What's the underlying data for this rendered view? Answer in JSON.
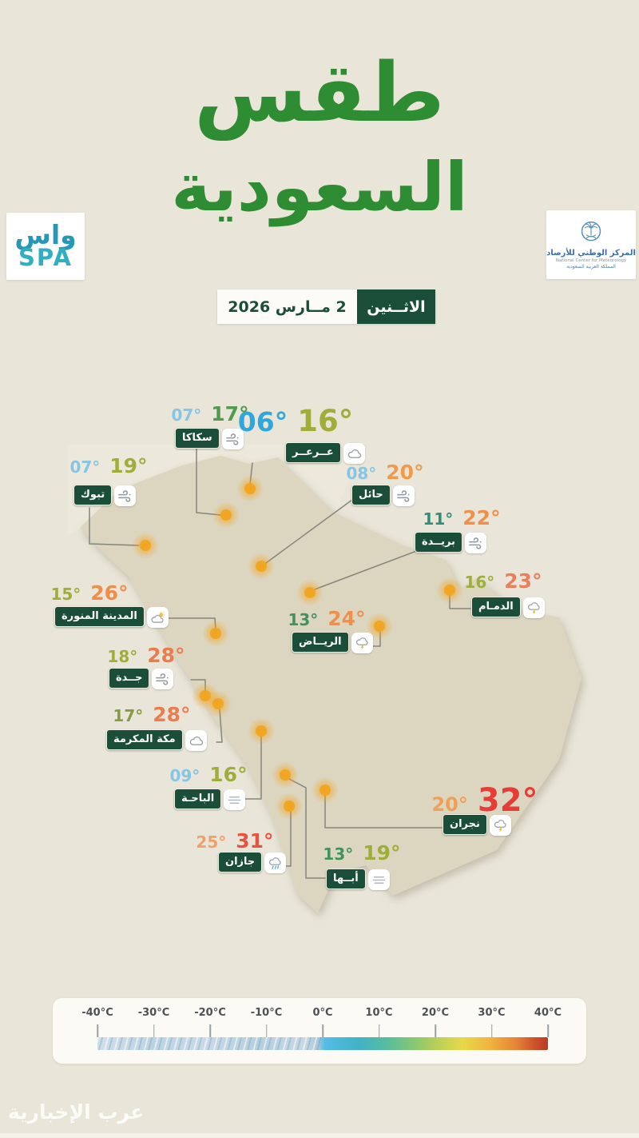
{
  "title": {
    "line1": "طقس",
    "line2": "السعودية"
  },
  "header": {
    "spa_logo": {
      "row1": "واس",
      "row2": "SPA"
    },
    "ncm_logo": {
      "name_ar": "المركز الوطني للأرصاد",
      "name_en": "National Center for Meteorology",
      "country_ar": "المملكة العربية السعودية"
    }
  },
  "date_bar": {
    "day": "الاثــنين",
    "date": "2 مــارس 2026"
  },
  "cities": [
    {
      "id": "arar",
      "name": "عــرعــر",
      "low": "06°",
      "high": "16°",
      "icon": "cloud",
      "low_color": "#2fa7dd",
      "high_color": "#9fae39"
    },
    {
      "id": "sakaka",
      "name": "سكاكا",
      "low": "07°",
      "high": "17°",
      "icon": "wind",
      "low_color": "#85c5e6",
      "high_color": "#4f9c51"
    },
    {
      "id": "tabuk",
      "name": "تبوك",
      "low": "07°",
      "high": "19°",
      "icon": "wind",
      "low_color": "#85c5e6",
      "high_color": "#9fae39"
    },
    {
      "id": "hail",
      "name": "حائل",
      "low": "08°",
      "high": "20°",
      "icon": "wind",
      "low_color": "#85c5e6",
      "high_color": "#f09a4c"
    },
    {
      "id": "buraydah",
      "name": "بريــدة",
      "low": "11°",
      "high": "22°",
      "icon": "wind",
      "low_color": "#2f8e78",
      "high_color": "#ef8f49"
    },
    {
      "id": "dammam",
      "name": "الدمـام",
      "low": "16°",
      "high": "23°",
      "icon": "thunder",
      "low_color": "#9fae39",
      "high_color": "#ec7f5b"
    },
    {
      "id": "riyadh",
      "name": "الريــاض",
      "low": "13°",
      "high": "24°",
      "icon": "thunder",
      "low_color": "#41935c",
      "high_color": "#ef8f49"
    },
    {
      "id": "medina",
      "name": "المدينة المنورة",
      "low": "15°",
      "high": "26°",
      "icon": "cloud-sun",
      "low_color": "#9fae39",
      "high_color": "#ee8c49"
    },
    {
      "id": "jeddah",
      "name": "جــدة",
      "low": "18°",
      "high": "28°",
      "icon": "wind",
      "low_color": "#9fae39",
      "high_color": "#ec7c4e"
    },
    {
      "id": "makkah",
      "name": "مكة المكرمة",
      "low": "17°",
      "high": "28°",
      "icon": "cloud",
      "low_color": "#849c44",
      "high_color": "#ec7c4e"
    },
    {
      "id": "bahah",
      "name": "الباحـة",
      "low": "09°",
      "high": "16°",
      "icon": "fog",
      "low_color": "#85c5e6",
      "high_color": "#9fae39"
    },
    {
      "id": "najran",
      "name": "نجران",
      "low": "20°",
      "high": "32°",
      "icon": "thunder",
      "low_color": "#f0a055",
      "high_color": "#e63e36"
    },
    {
      "id": "jazan",
      "name": "جازان",
      "low": "25°",
      "high": "31°",
      "icon": "rain",
      "low_color": "#f0a06b",
      "high_color": "#e4543e"
    },
    {
      "id": "abha",
      "name": "أبــها",
      "low": "13°",
      "high": "19°",
      "icon": "fog",
      "low_color": "#41935c",
      "high_color": "#9fae39"
    }
  ],
  "temperature_scale": {
    "ticks": [
      "-40°C",
      "-30°C",
      "-20°C",
      "-10°C",
      "0°C",
      "10°C",
      "20°C",
      "30°C",
      "40°C"
    ]
  },
  "watermark": "عرب الإخبارية",
  "colors": {
    "title_green": "#2e8c32",
    "box_green": "#1b4e38",
    "background": "#e9e5d8",
    "map_fill": "#dcd6c1",
    "dot_orange": "#f2a41e"
  }
}
